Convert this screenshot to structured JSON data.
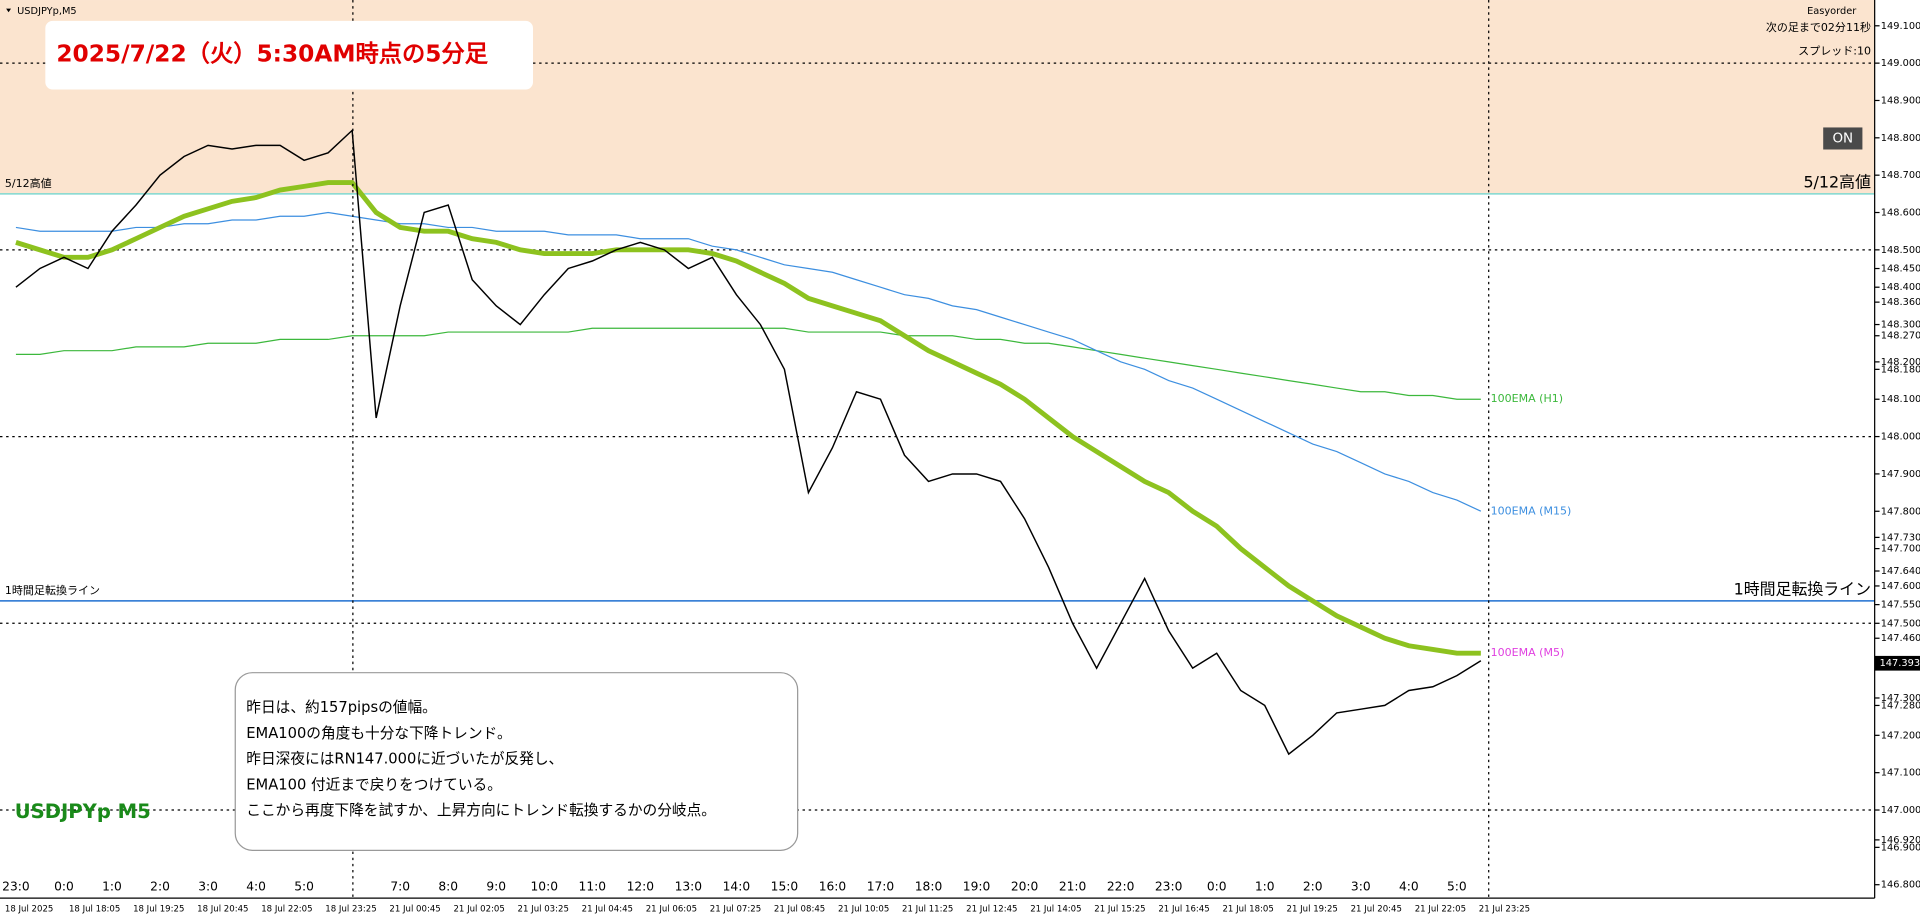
{
  "window": {
    "symbol": "USDJPYp,M5",
    "plugin": "Easyorder",
    "countdown": "次の足まで02分11秒",
    "spread": "スプレッド:10",
    "button": "ON"
  },
  "headline": "2025/7/22（火）5:30AM時点の5分足",
  "watermark": "USDJPYp M5",
  "note": [
    "昨日は、約157pipsの値幅。",
    "EMA100の角度も十分な下降トレンド。",
    "昨日深夜にはRN147.000に近づいたが反発し、",
    "EMA100 付近まで戻りをつけている。",
    "ここから再度下降を試すか、上昇方向にトレンド転換するかの分岐点。"
  ],
  "dates": [
    "18 Jul 2025",
    "18 Jul 18:05",
    "18 Jul 19:25",
    "18 Jul 20:45",
    "18 Jul 22:05",
    "18 Jul 23:25",
    "21 Jul 00:45",
    "21 Jul 02:05",
    "21 Jul 03:25",
    "21 Jul 04:45",
    "21 Jul 06:05",
    "21 Jul 07:25",
    "21 Jul 08:45",
    "21 Jul 10:05",
    "21 Jul 11:25",
    "21 Jul 12:45",
    "21 Jul 14:05",
    "21 Jul 15:25",
    "21 Jul 16:45",
    "21 Jul 18:05",
    "21 Jul 19:25",
    "21 Jul 20:45",
    "21 Jul 22:05",
    "21 Jul 23:25"
  ],
  "chart_data": {
    "type": "line",
    "categories": [
      "23:0",
      null,
      "0:0",
      null,
      "1:0",
      null,
      "2:0",
      null,
      "3:0",
      null,
      "4:0",
      null,
      "5:0",
      null,
      null,
      null,
      "7:0",
      null,
      "8:0",
      null,
      "9:0",
      null,
      "10:0",
      null,
      "11:0",
      null,
      "12:0",
      null,
      "13:0",
      null,
      "14:0",
      null,
      "15:0",
      null,
      "16:0",
      null,
      "17:0",
      null,
      "18:0",
      null,
      "19:0",
      null,
      "20:0",
      null,
      "21:0",
      null,
      "22:0",
      null,
      "23:0",
      null,
      "0:0",
      null,
      "1:0",
      null,
      "2:0",
      null,
      "3:0",
      null,
      "4:0",
      null,
      "5:0",
      null
    ],
    "series": [
      {
        "name": "USDJPYp",
        "color": "#000000",
        "values": [
          148.4,
          148.45,
          148.48,
          148.45,
          148.55,
          148.62,
          148.7,
          148.75,
          148.78,
          148.77,
          148.78,
          148.78,
          148.74,
          148.76,
          148.82,
          148.05,
          148.35,
          148.6,
          148.62,
          148.42,
          148.35,
          148.3,
          148.38,
          148.45,
          148.47,
          148.5,
          148.52,
          148.5,
          148.45,
          148.48,
          148.38,
          148.3,
          148.18,
          147.85,
          147.97,
          148.12,
          148.1,
          147.95,
          147.88,
          147.9,
          147.9,
          147.88,
          147.78,
          147.65,
          147.5,
          147.38,
          147.5,
          147.62,
          147.48,
          147.38,
          147.42,
          147.32,
          147.28,
          147.15,
          147.2,
          147.26,
          147.27,
          147.28,
          147.32,
          147.33,
          147.36,
          147.4
        ]
      },
      {
        "name": "100EMA (M5)",
        "color": "#8dc21f",
        "label_color": "#e040e0",
        "values": [
          148.52,
          148.5,
          148.48,
          148.48,
          148.5,
          148.53,
          148.56,
          148.59,
          148.61,
          148.63,
          148.64,
          148.66,
          148.67,
          148.68,
          148.68,
          148.6,
          148.56,
          148.55,
          148.55,
          148.53,
          148.52,
          148.5,
          148.49,
          148.49,
          148.49,
          148.5,
          148.5,
          148.5,
          148.5,
          148.49,
          148.47,
          148.44,
          148.41,
          148.37,
          148.35,
          148.33,
          148.31,
          148.27,
          148.23,
          148.2,
          148.17,
          148.14,
          148.1,
          148.05,
          148.0,
          147.96,
          147.92,
          147.88,
          147.85,
          147.8,
          147.76,
          147.7,
          147.65,
          147.6,
          147.56,
          147.52,
          147.49,
          147.46,
          147.44,
          147.43,
          147.42,
          147.42
        ]
      },
      {
        "name": "100EMA (M15)",
        "color": "#3d8fe0",
        "label_color": "#3d8fe0",
        "values": [
          148.56,
          148.55,
          148.55,
          148.55,
          148.55,
          148.56,
          148.56,
          148.57,
          148.57,
          148.58,
          148.58,
          148.59,
          148.59,
          148.6,
          148.59,
          148.58,
          148.57,
          148.57,
          148.56,
          148.56,
          148.55,
          148.55,
          148.55,
          148.54,
          148.54,
          148.54,
          148.53,
          148.53,
          148.53,
          148.51,
          148.5,
          148.48,
          148.46,
          148.45,
          148.44,
          148.42,
          148.4,
          148.38,
          148.37,
          148.35,
          148.34,
          148.32,
          148.3,
          148.28,
          148.26,
          148.23,
          148.2,
          148.18,
          148.15,
          148.13,
          148.1,
          148.07,
          148.04,
          148.01,
          147.98,
          147.96,
          147.93,
          147.9,
          147.88,
          147.85,
          147.83,
          147.8
        ]
      },
      {
        "name": "100EMA (H1)",
        "color": "#3cb83c",
        "label_color": "#3cb83c",
        "values": [
          148.22,
          148.22,
          148.23,
          148.23,
          148.23,
          148.24,
          148.24,
          148.24,
          148.25,
          148.25,
          148.25,
          148.26,
          148.26,
          148.26,
          148.27,
          148.27,
          148.27,
          148.27,
          148.28,
          148.28,
          148.28,
          148.28,
          148.28,
          148.28,
          148.29,
          148.29,
          148.29,
          148.29,
          148.29,
          148.29,
          148.29,
          148.29,
          148.29,
          148.28,
          148.28,
          148.28,
          148.28,
          148.27,
          148.27,
          148.27,
          148.26,
          148.26,
          148.25,
          148.25,
          148.24,
          148.23,
          148.22,
          148.21,
          148.2,
          148.19,
          148.18,
          148.17,
          148.16,
          148.15,
          148.14,
          148.13,
          148.12,
          148.12,
          148.11,
          148.11,
          148.1,
          148.1
        ]
      }
    ],
    "hlines": [
      {
        "label": "5/12高値",
        "value": 148.65,
        "color": "#7fd8d0",
        "shade_above": "#fbe4cf"
      },
      {
        "label": "1時間足転換ライン",
        "value": 147.56,
        "color": "#1f6fd0"
      }
    ],
    "current_price": {
      "value": 147.393,
      "label": "147.393"
    },
    "ylim": [
      146.764,
      149.169
    ],
    "yticks": [
      {
        "value": 149.1,
        "label": "149.100"
      },
      {
        "value": 149.0,
        "label": "149.000"
      },
      {
        "value": 148.9,
        "label": "148.900"
      },
      {
        "value": 148.8,
        "label": "148.800"
      },
      {
        "value": 148.7,
        "label": "148.700"
      },
      {
        "value": 148.6,
        "label": "148.600"
      },
      {
        "value": 148.5,
        "label": "148.500"
      },
      {
        "value": 148.45,
        "label": "148.450"
      },
      {
        "value": 148.4,
        "label": "148.400"
      },
      {
        "value": 148.36,
        "label": "148.360"
      },
      {
        "value": 148.3,
        "label": "148.300"
      },
      {
        "value": 148.27,
        "label": "148.270"
      },
      {
        "value": 148.2,
        "label": "148.200"
      },
      {
        "value": 148.18,
        "label": "148.180"
      },
      {
        "value": 148.1,
        "label": "148.100"
      },
      {
        "value": 148.0,
        "label": "148.000"
      },
      {
        "value": 147.9,
        "label": "147.900"
      },
      {
        "value": 147.8,
        "label": "147.800"
      },
      {
        "value": 147.73,
        "label": "147.730"
      },
      {
        "value": 147.7,
        "label": "147.700"
      },
      {
        "value": 147.64,
        "label": "147.640"
      },
      {
        "value": 147.6,
        "label": "147.600"
      },
      {
        "value": 147.55,
        "label": "147.550"
      },
      {
        "value": 147.5,
        "label": "147.500"
      },
      {
        "value": 147.46,
        "label": "147.460"
      },
      {
        "value": 147.3,
        "label": "147.300"
      },
      {
        "value": 147.28,
        "label": "147.280"
      },
      {
        "value": 147.2,
        "label": "147.200"
      },
      {
        "value": 147.1,
        "label": "147.100"
      },
      {
        "value": 147.0,
        "label": "147.000"
      },
      {
        "value": 146.92,
        "label": "146.920"
      },
      {
        "value": 146.9,
        "label": "146.900"
      },
      {
        "value": 146.8,
        "label": "146.800"
      }
    ],
    "grid": true
  }
}
